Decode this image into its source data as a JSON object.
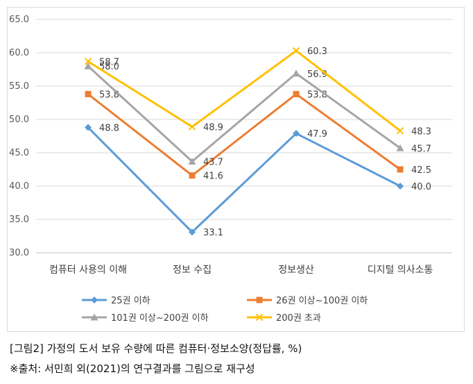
{
  "chart_data": {
    "type": "line",
    "categories": [
      "컴퓨터 사용의 이해",
      "정보 수집",
      "정보생산",
      "디지털 의사소통"
    ],
    "series": [
      {
        "name": "25권 이하",
        "values": [
          48.8,
          33.1,
          47.9,
          40.0
        ],
        "color": "#5b9bd5",
        "marker": "diamond"
      },
      {
        "name": "26권 이상~100권 이하",
        "values": [
          53.8,
          41.6,
          53.8,
          42.5
        ],
        "color": "#ed7d31",
        "marker": "square"
      },
      {
        "name": "101권 이상~200권 이하",
        "values": [
          58.0,
          43.7,
          56.9,
          45.7
        ],
        "color": "#a5a5a5",
        "marker": "triangle"
      },
      {
        "name": "200권 초과",
        "values": [
          58.7,
          48.9,
          60.3,
          48.3
        ],
        "color": "#ffc000",
        "marker": "x"
      }
    ],
    "ylim": [
      30.0,
      65.0
    ],
    "yticks": [
      "30.0",
      "35.0",
      "40.0",
      "45.0",
      "50.0",
      "55.0",
      "60.0",
      "65.0"
    ],
    "grid": true,
    "legend": "bottom"
  },
  "caption": {
    "title": "[그림2] 가정의 도서 보유 수량에 따른 컴퓨터·정보소양(정답률, %)",
    "source": "※출처: 서민희 외(2021)의 연구결과를 그림으로 재구성"
  }
}
